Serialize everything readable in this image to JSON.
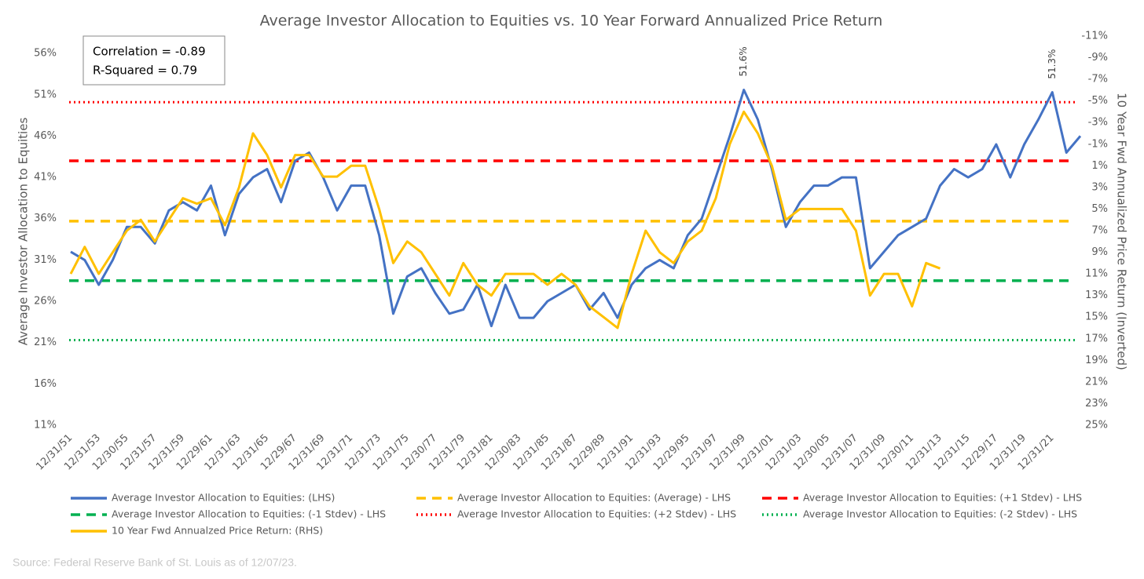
{
  "chart_data": {
    "type": "line",
    "title": "Average Investor Allocation to Equities vs. 10 Year Forward Annualized Price Return",
    "y_label": "Average Investor Allocation to Equities",
    "y2_label": "10 Year Fwd Annualized Price Return (Inverted)",
    "annotations": [
      "Correlation = -0.89",
      "R-Squared = 0.79"
    ],
    "source": "Source: Federal Reserve Bank of St. Louis as of 12/07/23.",
    "categories": [
      "12/31/51",
      null,
      "12/31/53",
      null,
      "12/30/55",
      null,
      "12/31/57",
      null,
      "12/31/59",
      null,
      "12/29/61",
      null,
      "12/31/63",
      null,
      "12/31/65",
      null,
      "12/29/67",
      null,
      "12/31/69",
      null,
      "12/31/71",
      null,
      "12/31/73",
      null,
      "12/31/75",
      null,
      "12/30/77",
      null,
      "12/31/79",
      null,
      "12/31/81",
      null,
      "12/30/83",
      null,
      "12/31/85",
      null,
      "12/31/87",
      null,
      "12/29/89",
      null,
      "12/31/91",
      null,
      "12/31/93",
      null,
      "12/29/95",
      null,
      "12/31/97",
      null,
      "12/31/99",
      null,
      "12/31/01",
      null,
      "12/31/03",
      null,
      "12/30/05",
      null,
      "12/31/07",
      null,
      "12/31/09",
      null,
      "12/30/11",
      null,
      "12/31/13",
      null,
      "12/31/15",
      null,
      "12/29/17",
      null,
      "12/31/19",
      null,
      "12/31/21",
      null,
      null
    ],
    "series": [
      {
        "name": "Average Investor Allocation to Equities: (LHS)",
        "color": "#4472c4",
        "values": [
          32,
          31,
          28,
          31,
          35,
          35,
          33,
          37,
          38,
          37,
          40,
          34,
          39,
          41,
          42,
          38,
          43,
          44,
          41,
          37,
          40,
          40,
          34,
          24.5,
          29,
          30,
          27,
          24.5,
          25,
          28,
          23,
          28,
          24,
          24,
          26,
          27,
          28,
          25,
          27,
          24,
          28,
          30,
          31,
          30,
          34,
          36,
          41,
          46,
          51.6,
          48,
          42,
          35,
          38,
          40,
          40,
          41,
          41,
          30,
          32,
          34,
          35,
          36,
          40,
          42,
          41,
          42,
          45,
          41,
          45,
          48,
          51.3,
          44,
          46
        ],
        "value_labels": [
          null,
          null,
          null,
          null,
          null,
          null,
          null,
          null,
          null,
          null,
          null,
          null,
          null,
          null,
          null,
          null,
          null,
          null,
          null,
          null,
          null,
          null,
          null,
          null,
          null,
          null,
          null,
          null,
          null,
          null,
          null,
          null,
          null,
          null,
          null,
          null,
          null,
          null,
          null,
          null,
          null,
          null,
          null,
          null,
          null,
          null,
          null,
          null,
          "51.6%",
          null,
          null,
          null,
          null,
          null,
          null,
          null,
          null,
          null,
          null,
          null,
          null,
          null,
          null,
          null,
          null,
          null,
          null,
          null,
          null,
          null,
          "51.3%",
          null,
          null
        ]
      },
      {
        "name": "10 Year Fwd Annualzed Price Return: (RHS)",
        "color": "#ffc000",
        "axis": "y2",
        "values": [
          11,
          8.5,
          11,
          9,
          7,
          6,
          8,
          6,
          4,
          4.5,
          4,
          6.5,
          3,
          -2,
          0,
          3,
          0,
          0,
          2,
          2,
          1,
          1,
          5,
          10,
          8,
          9,
          11,
          13,
          10,
          12,
          13,
          11,
          11,
          11,
          12,
          11,
          12,
          14,
          15,
          16,
          11,
          7,
          9,
          10,
          8,
          7,
          4,
          -1,
          -4,
          -2,
          1,
          6,
          5,
          5,
          5,
          5,
          7,
          13,
          11,
          11,
          14,
          10,
          10.5,
          null,
          null,
          null,
          null,
          null,
          null,
          null,
          null,
          null,
          null
        ]
      }
    ],
    "reference_lines": [
      {
        "name": "Average Investor Allocation to Equities: (Average) - LHS",
        "color": "#ffc000",
        "style": "dashed",
        "value": 35.7
      },
      {
        "name": "Average Investor Allocation to Equities: (+1 Stdev) - LHS",
        "color": "#ff0000",
        "style": "dashed",
        "value": 43
      },
      {
        "name": "Average Investor Allocation to Equities: (-1 Stdev) - LHS",
        "color": "#00b050",
        "style": "dashed",
        "value": 28.5
      },
      {
        "name": "Average Investor Allocation to Equities: (+2 Stdev) - LHS",
        "color": "#ff0000",
        "style": "dotted",
        "value": 50.1
      },
      {
        "name": "Average Investor Allocation to Equities: (-2 Stdev) - LHS",
        "color": "#00b050",
        "style": "dotted",
        "value": 21.3
      }
    ],
    "ylim": [
      11,
      58.1
    ],
    "yticks": [
      {
        "value": 11,
        "label": "11%"
      },
      {
        "value": 16,
        "label": "16%"
      },
      {
        "value": 21,
        "label": "21%"
      },
      {
        "value": 26,
        "label": "26%"
      },
      {
        "value": 31,
        "label": "31%"
      },
      {
        "value": 36,
        "label": "36%"
      },
      {
        "value": 41,
        "label": "41%"
      },
      {
        "value": 46,
        "label": "46%"
      },
      {
        "value": 51,
        "label": "51%"
      },
      {
        "value": 56,
        "label": "56%"
      }
    ],
    "y2lim": [
      25,
      -11
    ],
    "y2ticks": [
      {
        "value": 25,
        "label": "25%"
      },
      {
        "value": 23,
        "label": "23%"
      },
      {
        "value": 21,
        "label": "21%"
      },
      {
        "value": 19,
        "label": "19%"
      },
      {
        "value": 17,
        "label": "17%"
      },
      {
        "value": 15,
        "label": "15%"
      },
      {
        "value": 13,
        "label": "13%"
      },
      {
        "value": 11,
        "label": "11%"
      },
      {
        "value": 9,
        "label": "9%"
      },
      {
        "value": 7,
        "label": "7%"
      },
      {
        "value": 5,
        "label": "5%"
      },
      {
        "value": 3,
        "label": "3%"
      },
      {
        "value": 1,
        "label": "1%"
      },
      {
        "value": -1,
        "label": "-1%"
      },
      {
        "value": -3,
        "label": "-3%"
      },
      {
        "value": -5,
        "label": "-5%"
      },
      {
        "value": -7,
        "label": "-7%"
      },
      {
        "value": -9,
        "label": "-9%"
      },
      {
        "value": -11,
        "label": "-11%"
      }
    ],
    "grid": false
  }
}
